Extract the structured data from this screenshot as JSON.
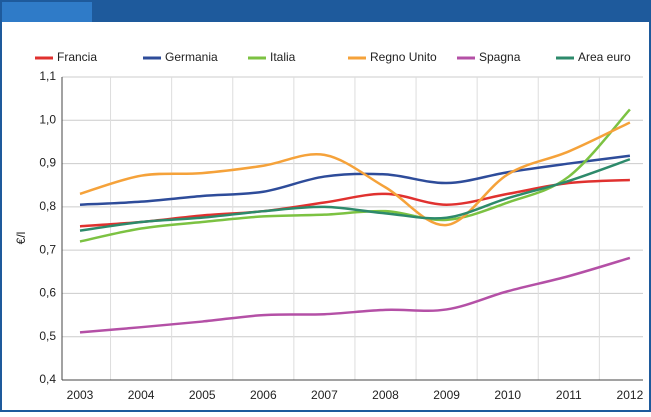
{
  "chart_data": {
    "type": "line",
    "categories": [
      "2003",
      "2004",
      "2005",
      "2006",
      "2007",
      "2008",
      "2009",
      "2010",
      "2011",
      "2012"
    ],
    "y_label": "€/l",
    "ylim": [
      0.4,
      1.1
    ],
    "yticks": [
      {
        "value": 0.4,
        "label": "0,4"
      },
      {
        "value": 0.5,
        "label": "0,5"
      },
      {
        "value": 0.6,
        "label": "0,6"
      },
      {
        "value": 0.7,
        "label": "0,7"
      },
      {
        "value": 0.8,
        "label": "0,8"
      },
      {
        "value": 0.9,
        "label": "0,9"
      },
      {
        "value": 1.0,
        "label": "1,0"
      },
      {
        "value": 1.1,
        "label": "1,1"
      }
    ],
    "grid": true,
    "smooth": true,
    "legend": "top",
    "series": [
      {
        "name": "Francia",
        "color": "#e0312f",
        "values": [
          0.755,
          0.765,
          0.78,
          0.79,
          0.81,
          0.83,
          0.805,
          0.83,
          0.855,
          0.862
        ]
      },
      {
        "name": "Germania",
        "color": "#2e4c9a",
        "values": [
          0.805,
          0.812,
          0.825,
          0.835,
          0.87,
          0.875,
          0.855,
          0.88,
          0.9,
          0.918
        ]
      },
      {
        "name": "Italia",
        "color": "#7cc242",
        "values": [
          0.72,
          0.75,
          0.765,
          0.778,
          0.782,
          0.79,
          0.77,
          0.81,
          0.87,
          1.025
        ]
      },
      {
        "name": "Regno Unito",
        "color": "#f5a23a",
        "values": [
          0.83,
          0.872,
          0.878,
          0.895,
          0.92,
          0.845,
          0.758,
          0.875,
          0.928,
          0.995
        ]
      },
      {
        "name": "Spagna",
        "color": "#b450a6",
        "values": [
          0.51,
          0.522,
          0.535,
          0.55,
          0.552,
          0.562,
          0.563,
          0.605,
          0.64,
          0.682
        ]
      },
      {
        "name": "Area euro",
        "color": "#2d8a6b",
        "values": [
          0.745,
          0.765,
          0.775,
          0.79,
          0.8,
          0.785,
          0.775,
          0.82,
          0.86,
          0.91
        ]
      }
    ]
  }
}
